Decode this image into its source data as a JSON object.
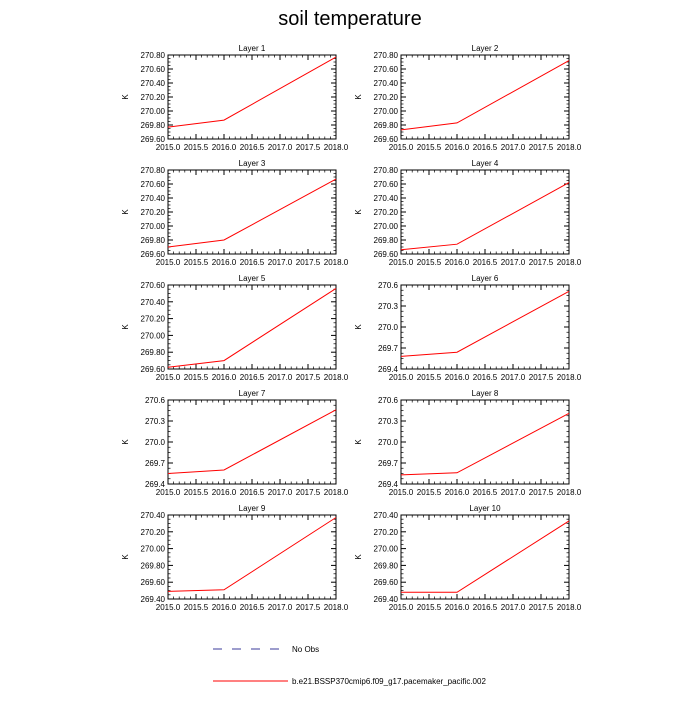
{
  "figure": {
    "title": "soil temperature",
    "legend": [
      {
        "label": "No Obs",
        "color": "#3b3b9b",
        "style": "dashed"
      },
      {
        "label": "b.e21.BSSP370cmip6.f09_g17.pacemaker_pacific.002",
        "color": "#ff0000",
        "style": "solid"
      }
    ]
  },
  "chart_data": [
    {
      "type": "line",
      "title": "Layer 1",
      "ylabel": "K",
      "x": [
        2015.0,
        2016.0,
        2018.0
      ],
      "values": [
        269.77,
        269.87,
        270.77
      ],
      "xlim": [
        2015.0,
        2018.0
      ],
      "ylim": [
        269.6,
        270.8
      ],
      "xticks": [
        "2015.0",
        "2015.5",
        "2016.0",
        "2016.5",
        "2017.0",
        "2017.5",
        "2018.0"
      ],
      "yticks": [
        269.6,
        269.8,
        270.0,
        270.2,
        270.4,
        270.6,
        270.8
      ],
      "yticklabels": [
        "269.60",
        "269.80",
        "270.00",
        "270.20",
        "270.40",
        "270.60",
        "270.80"
      ]
    },
    {
      "type": "line",
      "title": "Layer 2",
      "ylabel": "K",
      "x": [
        2015.0,
        2016.0,
        2018.0
      ],
      "values": [
        269.73,
        269.83,
        270.72
      ],
      "xlim": [
        2015.0,
        2018.0
      ],
      "ylim": [
        269.6,
        270.8
      ],
      "xticks": [
        "2015.0",
        "2015.5",
        "2016.0",
        "2016.5",
        "2017.0",
        "2017.5",
        "2018.0"
      ],
      "yticks": [
        269.6,
        269.8,
        270.0,
        270.2,
        270.4,
        270.6,
        270.8
      ],
      "yticklabels": [
        "269.60",
        "269.80",
        "270.00",
        "270.20",
        "270.40",
        "270.60",
        "270.80"
      ]
    },
    {
      "type": "line",
      "title": "Layer 3",
      "ylabel": "K",
      "x": [
        2015.0,
        2016.0,
        2018.0
      ],
      "values": [
        269.7,
        269.8,
        270.67
      ],
      "xlim": [
        2015.0,
        2018.0
      ],
      "ylim": [
        269.6,
        270.8
      ],
      "xticks": [
        "2015.0",
        "2015.5",
        "2016.0",
        "2016.5",
        "2017.0",
        "2017.5",
        "2018.0"
      ],
      "yticks": [
        269.6,
        269.8,
        270.0,
        270.2,
        270.4,
        270.6,
        270.8
      ],
      "yticklabels": [
        "269.60",
        "269.80",
        "270.00",
        "270.20",
        "270.40",
        "270.60",
        "270.80"
      ]
    },
    {
      "type": "line",
      "title": "Layer 4",
      "ylabel": "K",
      "x": [
        2015.0,
        2016.0,
        2018.0
      ],
      "values": [
        269.66,
        269.74,
        270.62
      ],
      "xlim": [
        2015.0,
        2018.0
      ],
      "ylim": [
        269.6,
        270.8
      ],
      "xticks": [
        "2015.0",
        "2015.5",
        "2016.0",
        "2016.5",
        "2017.0",
        "2017.5",
        "2018.0"
      ],
      "yticks": [
        269.6,
        269.8,
        270.0,
        270.2,
        270.4,
        270.6,
        270.8
      ],
      "yticklabels": [
        "269.60",
        "269.80",
        "270.00",
        "270.20",
        "270.40",
        "270.60",
        "270.80"
      ]
    },
    {
      "type": "line",
      "title": "Layer 5",
      "ylabel": "K",
      "x": [
        2015.0,
        2016.0,
        2018.0
      ],
      "values": [
        269.62,
        269.7,
        270.56
      ],
      "xlim": [
        2015.0,
        2018.0
      ],
      "ylim": [
        269.6,
        270.6
      ],
      "xticks": [
        "2015.0",
        "2015.5",
        "2016.0",
        "2016.5",
        "2017.0",
        "2017.5",
        "2018.0"
      ],
      "yticks": [
        269.6,
        269.8,
        270.0,
        270.2,
        270.4,
        270.6
      ],
      "yticklabels": [
        "269.60",
        "269.80",
        "270.00",
        "270.20",
        "270.40",
        "270.60"
      ]
    },
    {
      "type": "line",
      "title": "Layer 6",
      "ylabel": "K",
      "x": [
        2015.0,
        2016.0,
        2018.0
      ],
      "values": [
        269.58,
        269.64,
        270.51
      ],
      "xlim": [
        2015.0,
        2018.0
      ],
      "ylim": [
        269.4,
        270.6
      ],
      "xticks": [
        "2015.0",
        "2015.5",
        "2016.0",
        "2016.5",
        "2017.0",
        "2017.5",
        "2018.0"
      ],
      "yticks": [
        269.4,
        269.7,
        270.0,
        270.3,
        270.6
      ],
      "yticklabels": [
        "269.4",
        "269.7",
        "270.0",
        "270.3",
        "270.6"
      ]
    },
    {
      "type": "line",
      "title": "Layer 7",
      "ylabel": "K",
      "x": [
        2015.0,
        2016.0,
        2018.0
      ],
      "values": [
        269.55,
        269.6,
        270.46
      ],
      "xlim": [
        2015.0,
        2018.0
      ],
      "ylim": [
        269.4,
        270.6
      ],
      "xticks": [
        "2015.0",
        "2015.5",
        "2016.0",
        "2016.5",
        "2017.0",
        "2017.5",
        "2018.0"
      ],
      "yticks": [
        269.4,
        269.7,
        270.0,
        270.3,
        270.6
      ],
      "yticklabels": [
        "269.4",
        "269.7",
        "270.0",
        "270.3",
        "270.6"
      ]
    },
    {
      "type": "line",
      "title": "Layer 8",
      "ylabel": "K",
      "x": [
        2015.0,
        2016.0,
        2018.0
      ],
      "values": [
        269.53,
        269.56,
        270.41
      ],
      "xlim": [
        2015.0,
        2018.0
      ],
      "ylim": [
        269.4,
        270.6
      ],
      "xticks": [
        "2015.0",
        "2015.5",
        "2016.0",
        "2016.5",
        "2017.0",
        "2017.5",
        "2018.0"
      ],
      "yticks": [
        269.4,
        269.7,
        270.0,
        270.3,
        270.6
      ],
      "yticklabels": [
        "269.4",
        "269.7",
        "270.0",
        "270.3",
        "270.6"
      ]
    },
    {
      "type": "line",
      "title": "Layer 9",
      "ylabel": "K",
      "x": [
        2015.0,
        2016.0,
        2018.0
      ],
      "values": [
        269.49,
        269.51,
        270.37
      ],
      "xlim": [
        2015.0,
        2018.0
      ],
      "ylim": [
        269.4,
        270.4
      ],
      "xticks": [
        "2015.0",
        "2015.5",
        "2016.0",
        "2016.5",
        "2017.0",
        "2017.5",
        "2018.0"
      ],
      "yticks": [
        269.4,
        269.6,
        269.8,
        270.0,
        270.2,
        270.4
      ],
      "yticklabels": [
        "269.40",
        "269.60",
        "269.80",
        "270.00",
        "270.20",
        "270.40"
      ]
    },
    {
      "type": "line",
      "title": "Layer 10",
      "ylabel": "K",
      "x": [
        2015.0,
        2016.0,
        2018.0
      ],
      "values": [
        269.48,
        269.48,
        270.33
      ],
      "xlim": [
        2015.0,
        2018.0
      ],
      "ylim": [
        269.4,
        270.4
      ],
      "xticks": [
        "2015.0",
        "2015.5",
        "2016.0",
        "2016.5",
        "2017.0",
        "2017.5",
        "2018.0"
      ],
      "yticks": [
        269.4,
        269.6,
        269.8,
        270.0,
        270.2,
        270.4
      ],
      "yticklabels": [
        "269.40",
        "269.60",
        "269.80",
        "270.00",
        "270.20",
        "270.40"
      ]
    }
  ]
}
